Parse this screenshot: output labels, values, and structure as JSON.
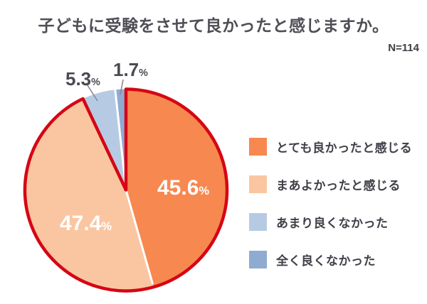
{
  "title": "子どもに受験をさせて良かったと感じますか。",
  "sample_size": "N=114",
  "chart_data": {
    "type": "pie",
    "title": "子どもに受験をさせて良かったと感じますか。",
    "sample_size_label": "N=114",
    "percent_sign": "%",
    "slices": [
      {
        "label": "とても良かったと感じる",
        "value": 45.6,
        "color": "#F68850",
        "label_color": "#FFFFFF"
      },
      {
        "label": "まあよかったと感じる",
        "value": 47.4,
        "color": "#FAC6A1",
        "label_color": "#FFFFFF"
      },
      {
        "label": "あまり良くなかった",
        "value": 5.3,
        "color": "#B6CBE3",
        "label_color": "#4A4A52"
      },
      {
        "label": "全く良くなかった",
        "value": 1.7,
        "color": "#8FABD2",
        "label_color": "#4A4A52"
      }
    ],
    "start_angle_deg": 0,
    "direction": "clockwise",
    "legend_position": "right",
    "outline_color": "#D60614",
    "red_outline_slices": [
      0,
      1
    ],
    "white_divider_after_slices": [
      0,
      2
    ]
  }
}
